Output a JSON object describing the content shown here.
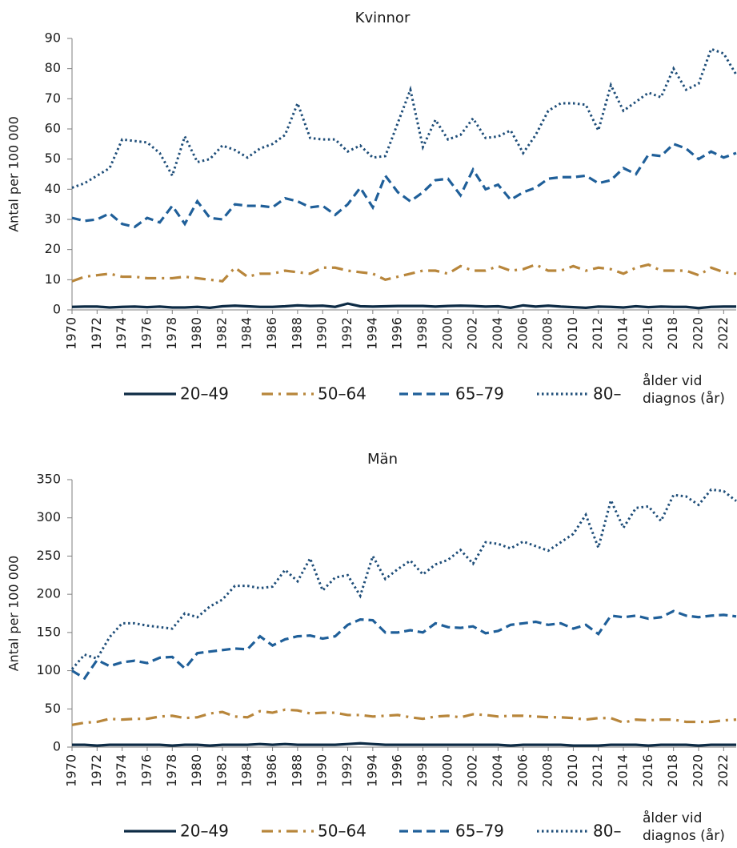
{
  "chart_data": [
    {
      "type": "line",
      "title": "Kvinnor",
      "y_label": "Antal per 100 000",
      "legend_title": "ålder vid diagnos (år)",
      "x": [
        1970,
        1971,
        1972,
        1973,
        1974,
        1975,
        1976,
        1977,
        1978,
        1979,
        1980,
        1981,
        1982,
        1983,
        1984,
        1985,
        1986,
        1987,
        1988,
        1989,
        1990,
        1991,
        1992,
        1993,
        1994,
        1995,
        1996,
        1997,
        1998,
        1999,
        2000,
        2001,
        2002,
        2003,
        2004,
        2005,
        2006,
        2007,
        2008,
        2009,
        2010,
        2011,
        2012,
        2013,
        2014,
        2015,
        2016,
        2017,
        2018,
        2019,
        2020,
        2021,
        2022,
        2023
      ],
      "xlim": [
        1970,
        2023
      ],
      "xticks": [
        1970,
        1972,
        1974,
        1976,
        1978,
        1980,
        1982,
        1984,
        1986,
        1988,
        1990,
        1992,
        1994,
        1996,
        1998,
        2000,
        2002,
        2004,
        2006,
        2008,
        2010,
        2012,
        2014,
        2016,
        2018,
        2020,
        2022
      ],
      "ylim": [
        0,
        90
      ],
      "yticks": [
        0,
        10,
        20,
        30,
        40,
        50,
        60,
        70,
        80,
        90
      ],
      "grid": false,
      "series": [
        {
          "name": "20–49",
          "color": "#0d2b45",
          "dash": "solid",
          "values": [
            1.0,
            1.1,
            1.1,
            0.8,
            1.0,
            1.1,
            0.9,
            1.1,
            0.8,
            0.8,
            1.0,
            0.7,
            1.2,
            1.4,
            1.2,
            1.0,
            1.0,
            1.2,
            1.5,
            1.3,
            1.4,
            1.0,
            2.1,
            1.2,
            1.1,
            1.2,
            1.3,
            1.3,
            1.3,
            1.1,
            1.3,
            1.4,
            1.3,
            1.1,
            1.2,
            0.7,
            1.5,
            1.1,
            1.4,
            1.1,
            0.9,
            0.7,
            1.1,
            1.0,
            0.8,
            1.2,
            0.9,
            1.1,
            1.0,
            1.0,
            0.6,
            1.0,
            1.1,
            1.1
          ]
        },
        {
          "name": "50–64",
          "color": "#b8863b",
          "dash": "dashdot",
          "values": [
            9.5,
            11,
            11.5,
            12,
            11,
            11,
            10.5,
            10.5,
            10.5,
            11,
            10.5,
            10,
            9.5,
            14,
            11,
            12,
            12,
            13,
            12.5,
            12,
            14,
            14,
            13,
            12.5,
            12,
            10,
            11,
            12,
            13,
            13,
            12,
            14.5,
            13,
            13,
            14.5,
            13,
            13.5,
            15,
            13,
            13,
            14.5,
            13,
            14,
            13.5,
            12,
            14,
            15,
            13,
            13,
            13,
            11.5,
            14,
            12.5,
            12
          ]
        },
        {
          "name": "65–79",
          "color": "#1f5f99",
          "dash": "dashed",
          "values": [
            30.5,
            29.5,
            30,
            32,
            28.5,
            27.5,
            30.5,
            29,
            34.5,
            28.5,
            36,
            30.5,
            30,
            35,
            34.5,
            34.5,
            34,
            37,
            36,
            34,
            34.5,
            31.5,
            35,
            40.5,
            34,
            44.5,
            39,
            36,
            39,
            43,
            43.5,
            38,
            46.5,
            40,
            41.5,
            36.5,
            39,
            40.5,
            43.5,
            44,
            44,
            44.5,
            42,
            43,
            47,
            45,
            51.5,
            51,
            55,
            53.5,
            50,
            52.5,
            50.5,
            52
          ]
        },
        {
          "name": "80–",
          "color": "#1f4e79",
          "dash": "dotted",
          "values": [
            40.5,
            42,
            44.5,
            47,
            56.5,
            56,
            55.5,
            52,
            44.5,
            57.5,
            49,
            50,
            54.5,
            53,
            50.5,
            53.5,
            55,
            58,
            68.5,
            57,
            56.5,
            56.5,
            52.5,
            54.5,
            50.5,
            51,
            62,
            73,
            54,
            63,
            56.5,
            58,
            63.5,
            57,
            57.5,
            59.5,
            52,
            58,
            66,
            68.5,
            68.5,
            68,
            59.5,
            74.5,
            66,
            69,
            72,
            70.5,
            80,
            73,
            75,
            86.5,
            85,
            78
          ]
        }
      ]
    },
    {
      "type": "line",
      "title": "Män",
      "y_label": "Antal per 100 000",
      "legend_title": "ålder vid diagnos (år)",
      "x": [
        1970,
        1971,
        1972,
        1973,
        1974,
        1975,
        1976,
        1977,
        1978,
        1979,
        1980,
        1981,
        1982,
        1983,
        1984,
        1985,
        1986,
        1987,
        1988,
        1989,
        1990,
        1991,
        1992,
        1993,
        1994,
        1995,
        1996,
        1997,
        1998,
        1999,
        2000,
        2001,
        2002,
        2003,
        2004,
        2005,
        2006,
        2007,
        2008,
        2009,
        2010,
        2011,
        2012,
        2013,
        2014,
        2015,
        2016,
        2017,
        2018,
        2019,
        2020,
        2021,
        2022,
        2023
      ],
      "xlim": [
        1970,
        2023
      ],
      "xticks": [
        1970,
        1972,
        1974,
        1976,
        1978,
        1980,
        1982,
        1984,
        1986,
        1988,
        1990,
        1992,
        1994,
        1996,
        1998,
        2000,
        2002,
        2004,
        2006,
        2008,
        2010,
        2012,
        2014,
        2016,
        2018,
        2020,
        2022
      ],
      "ylim": [
        0,
        350
      ],
      "yticks": [
        0,
        50,
        100,
        150,
        200,
        250,
        300,
        350
      ],
      "grid": false,
      "series": [
        {
          "name": "20–49",
          "color": "#0d2b45",
          "dash": "solid",
          "values": [
            3,
            3,
            2,
            3,
            3,
            3,
            3,
            3,
            2,
            3,
            3,
            2,
            3,
            3,
            3,
            4,
            3,
            4,
            3,
            3,
            3,
            3,
            4,
            5,
            4,
            3,
            3,
            3,
            3,
            3,
            3,
            3,
            3,
            3,
            3,
            2,
            3,
            3,
            3,
            3,
            2,
            2,
            2,
            3,
            3,
            3,
            2,
            3,
            3,
            3,
            2,
            3,
            3,
            3
          ]
        },
        {
          "name": "50–64",
          "color": "#b8863b",
          "dash": "dashdot",
          "values": [
            29,
            32,
            33,
            37,
            36,
            37,
            37,
            40,
            41,
            38,
            39,
            44,
            46,
            40,
            39,
            47,
            45,
            49,
            48,
            44,
            45,
            45,
            42,
            42,
            40,
            41,
            42,
            39,
            37,
            40,
            41,
            39,
            43,
            42,
            40,
            41,
            41,
            40,
            39,
            39,
            38,
            36,
            38,
            38,
            32,
            36,
            35,
            36,
            36,
            33,
            33,
            33,
            35,
            36
          ]
        },
        {
          "name": "65–79",
          "color": "#1f5f99",
          "dash": "dashed",
          "values": [
            100,
            90,
            114,
            106,
            111,
            113,
            110,
            117,
            118,
            103,
            123,
            125,
            127,
            129,
            128,
            145,
            133,
            141,
            145,
            146,
            142,
            145,
            160,
            167,
            166,
            150,
            150,
            153,
            150,
            162,
            157,
            156,
            158,
            149,
            152,
            160,
            162,
            164,
            160,
            162,
            155,
            160,
            148,
            172,
            170,
            172,
            168,
            170,
            178,
            172,
            170,
            172,
            173,
            171
          ]
        },
        {
          "name": "80–",
          "color": "#1f4e79",
          "dash": "dotted",
          "values": [
            102,
            121,
            116,
            144,
            162,
            162,
            159,
            157,
            155,
            175,
            170,
            184,
            193,
            211,
            211,
            208,
            210,
            232,
            217,
            247,
            205,
            222,
            225,
            198,
            250,
            220,
            233,
            244,
            226,
            239,
            245,
            258,
            240,
            268,
            266,
            260,
            269,
            263,
            257,
            268,
            279,
            304,
            261,
            323,
            287,
            313,
            315,
            296,
            330,
            328,
            317,
            337,
            335,
            322
          ]
        }
      ]
    }
  ]
}
